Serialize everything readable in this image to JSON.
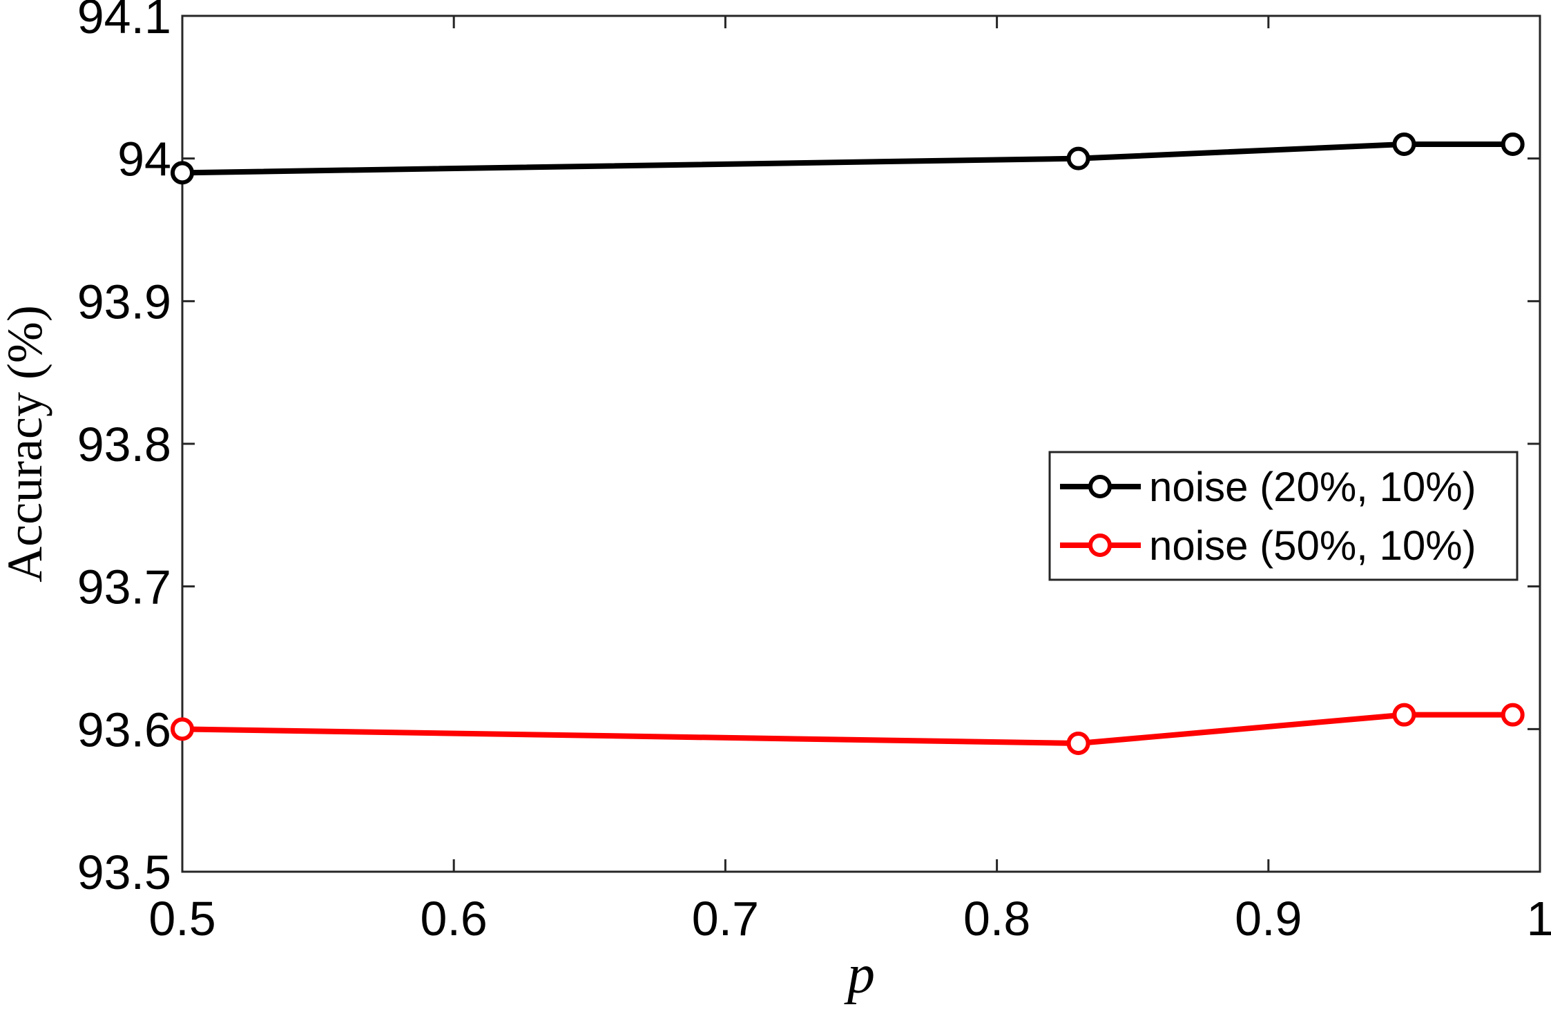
{
  "chart_data": {
    "type": "line",
    "xlabel": "p",
    "ylabel": "Accuracy (%)",
    "xlim": [
      0.5,
      1
    ],
    "ylim": [
      93.5,
      94.1
    ],
    "xticks": [
      0.5,
      0.6,
      0.7,
      0.8,
      0.9,
      1
    ],
    "xtick_labels": [
      "0.5",
      "0.6",
      "0.7",
      "0.8",
      "0.9",
      "1"
    ],
    "yticks": [
      93.5,
      93.6,
      93.7,
      93.8,
      93.9,
      94,
      94.1
    ],
    "ytick_labels": [
      "93.5",
      "93.6",
      "93.7",
      "93.8",
      "93.9",
      "94",
      "94.1"
    ],
    "grid": false,
    "legend_position": "right",
    "series": [
      {
        "name": "noise (20%, 10%)",
        "color": "#000000",
        "marker": "circle",
        "x": [
          0.5,
          0.83,
          0.95,
          0.99
        ],
        "y": [
          93.99,
          94.0,
          94.01,
          94.01
        ]
      },
      {
        "name": "noise (50%, 10%)",
        "color": "#ff0000",
        "marker": "circle",
        "x": [
          0.5,
          0.83,
          0.95,
          0.99
        ],
        "y": [
          93.6,
          93.59,
          93.61,
          93.61
        ]
      }
    ]
  }
}
